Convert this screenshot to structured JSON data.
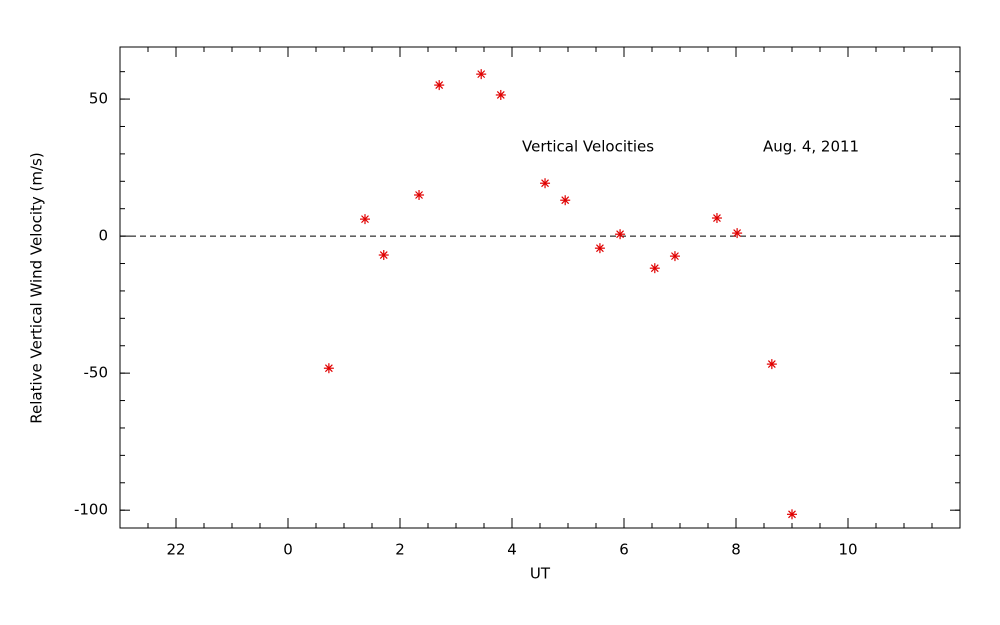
{
  "chart_data": {
    "type": "scatter",
    "xlabel": "UT",
    "ylabel": "Relative Vertical Wind Velocity (m/s)",
    "annotations": [
      "Vertical Velocities",
      "Aug. 4, 2011"
    ],
    "x": [
      0.73,
      1.375,
      1.71,
      2.34,
      2.7,
      3.45,
      3.8,
      4.59,
      4.95,
      5.57,
      5.93,
      6.55,
      6.91,
      7.66,
      8.02,
      8.64,
      9.0
    ],
    "series": [
      {
        "color": "#e00000",
        "values": [
          -48.2,
          6.2,
          -6.9,
          15.0,
          55.1,
          59.1,
          51.5,
          19.3,
          13.1,
          -4.4,
          0.7,
          -11.7,
          -7.3,
          6.6,
          1.1,
          -46.7,
          -101.5
        ]
      }
    ],
    "xlim": [
      -3,
      12
    ],
    "xticks": [
      {
        "value": -2,
        "label": "22"
      },
      0,
      2,
      4,
      6,
      8,
      10
    ],
    "ylim": [
      -106.5,
      69
    ],
    "yticks": [
      -100,
      -50,
      0,
      50
    ],
    "reference_line": 0
  }
}
